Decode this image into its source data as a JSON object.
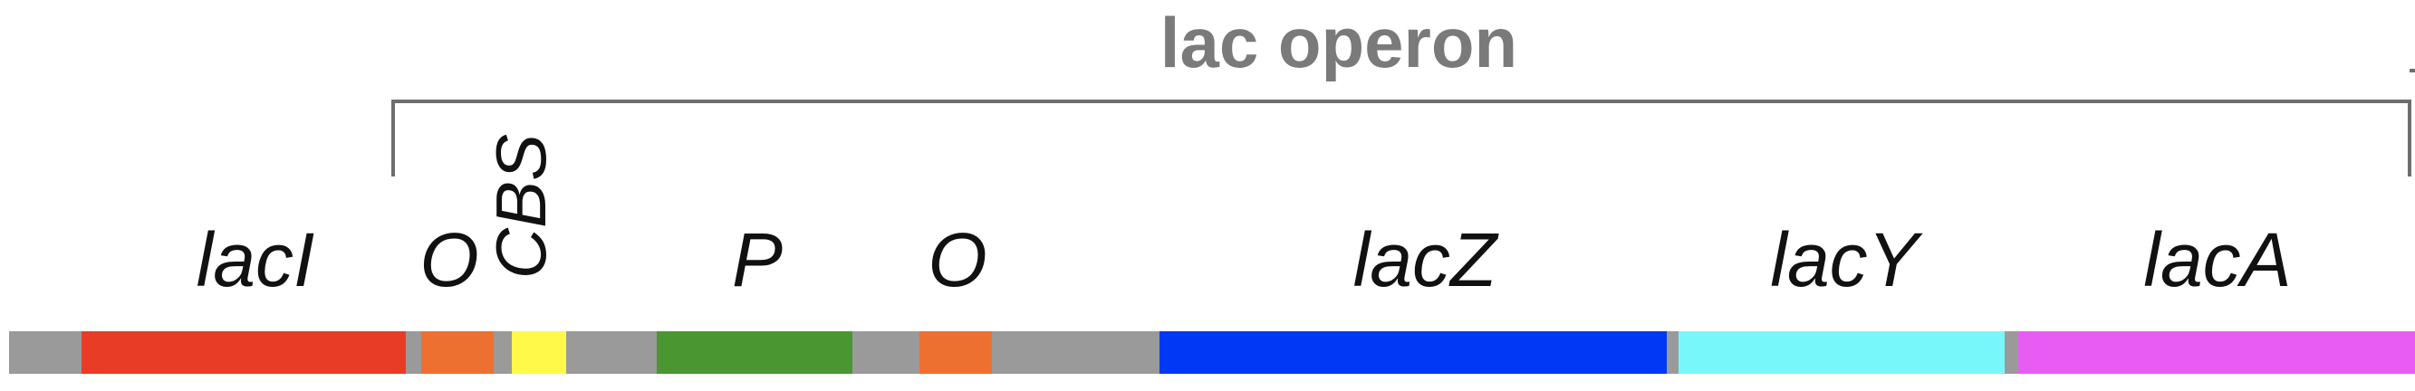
{
  "title": "lac operon",
  "backbone_color": "#9a9a9a",
  "segments": [
    {
      "label": "lacI",
      "color": "#e83c26"
    },
    {
      "label": "O",
      "color": "#ee7030"
    },
    {
      "label": "CBS",
      "color": "#fff94a"
    },
    {
      "label": "P",
      "color": "#4a9631"
    },
    {
      "label": "O",
      "color": "#ee7030"
    },
    {
      "label": "lacZ",
      "color": "#0038f5"
    },
    {
      "label": "lacY",
      "color": "#78f7fb"
    },
    {
      "label": "lacA",
      "color": "#e95cf4"
    }
  ]
}
